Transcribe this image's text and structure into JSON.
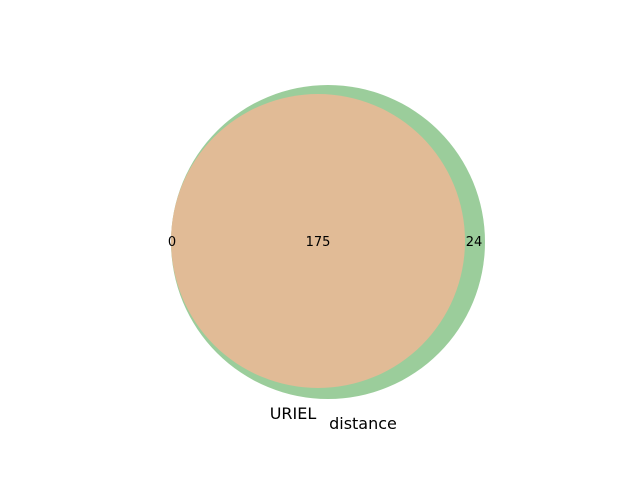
{
  "venn": {
    "sets": [
      {
        "label": "URIEL",
        "color": "#E1BB96"
      },
      {
        "label": "distance",
        "color": "#9BCD9B"
      }
    ],
    "regions": {
      "uriel_only": "0",
      "intersection": "175",
      "distance_only": "24"
    },
    "overlap_color": "#E1BB96"
  }
}
